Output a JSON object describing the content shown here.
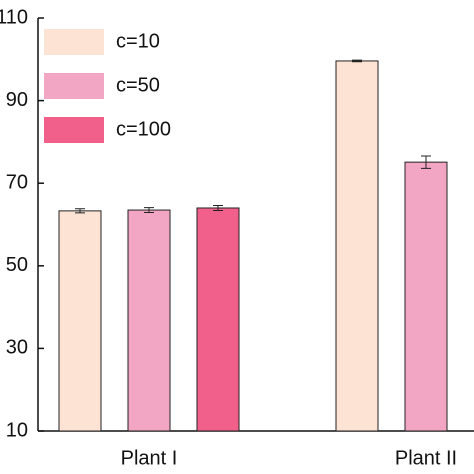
{
  "chart_data": {
    "type": "bar",
    "categories": [
      "Plant I",
      "Plant II"
    ],
    "series": [
      {
        "name": "c=10",
        "color": "#fde3d3",
        "values": [
          63.3,
          99.6
        ],
        "errors": [
          0.5,
          0.2
        ]
      },
      {
        "name": "c=50",
        "color": "#f2a6c3",
        "values": [
          63.5,
          75.1
        ],
        "errors": [
          0.6,
          1.5
        ]
      },
      {
        "name": "c=100",
        "color": "#f0608a",
        "values": [
          64.0,
          null
        ],
        "errors": [
          0.6,
          null
        ]
      }
    ],
    "ylim": [
      10,
      110
    ],
    "yticks": [
      10,
      30,
      50,
      70,
      90,
      110
    ],
    "legend": "upper left"
  }
}
